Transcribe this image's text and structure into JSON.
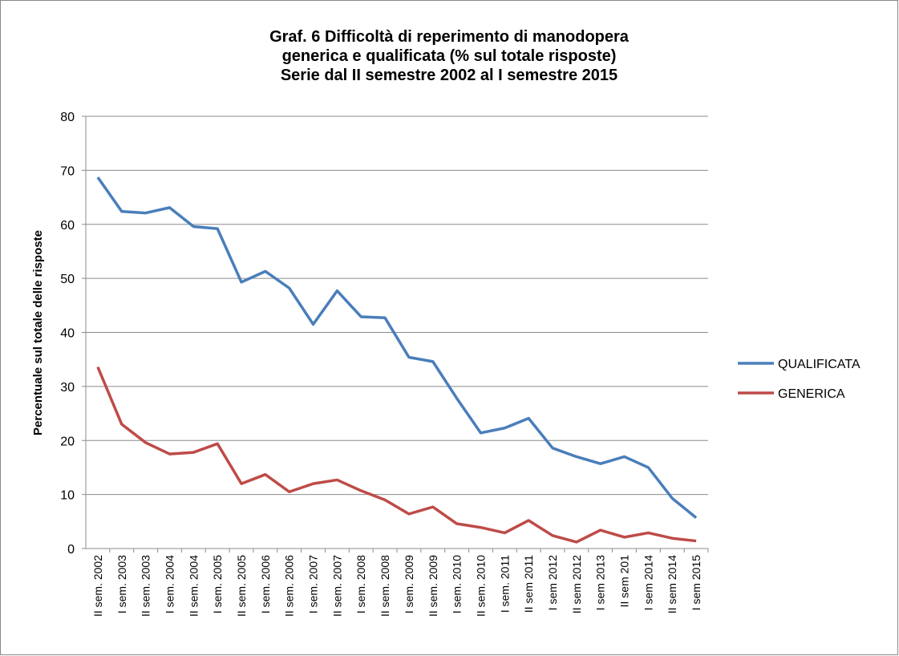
{
  "chart_data": {
    "type": "line",
    "title": [
      "Graf. 6 Difficoltà di reperimento di manodopera",
      "generica e qualificata (% sul totale risposte)",
      "Serie dal II semestre 2002 al I semestre 2015"
    ],
    "y_label": "Percentuale sul totale delle risposte",
    "categories": [
      "II sem. 2002",
      "I sem. 2003",
      "II sem. 2003",
      "I sem. 2004",
      "II sem. 2004",
      "I sem. 2005",
      "II sem. 2005",
      "I sem. 2006",
      "II sem. 2006",
      "I sem. 2007",
      "II sem. 2007",
      "I sem. 2008",
      "II sem. 2008",
      "I sem. 2009",
      "II sem. 2009",
      "I sem. 2010",
      "II sem. 2010",
      "I sem. 2011",
      "II sem 2011",
      "I sem 2012",
      "II sem 2012",
      "I sem 2013",
      "II sem 201",
      "I sem 2014",
      "II sem 2014",
      "I sem 2015"
    ],
    "series": [
      {
        "name": "QUALIFICATA",
        "color": "#4a7ebb",
        "values": [
          68.7,
          62.4,
          62.1,
          63.1,
          59.6,
          59.2,
          49.3,
          51.3,
          48.2,
          41.5,
          47.7,
          42.9,
          42.7,
          35.4,
          34.6,
          27.8,
          21.4,
          22.3,
          24.1,
          18.6,
          17.0,
          15.7,
          17.0,
          15.0,
          9.3,
          5.7
        ]
      },
      {
        "name": "GENERICA",
        "color": "#be4b48",
        "values": [
          33.6,
          23.0,
          19.6,
          17.5,
          17.8,
          19.4,
          12.0,
          13.7,
          10.5,
          12.0,
          12.7,
          10.7,
          9.0,
          6.4,
          7.7,
          4.6,
          3.9,
          2.9,
          5.2,
          2.4,
          1.2,
          3.4,
          2.1,
          2.9,
          1.9,
          1.4
        ]
      }
    ],
    "ylim": [
      0,
      80
    ],
    "yticks": [
      0,
      10,
      20,
      30,
      40,
      50,
      60,
      70,
      80
    ],
    "grid": true,
    "legend": "right"
  }
}
